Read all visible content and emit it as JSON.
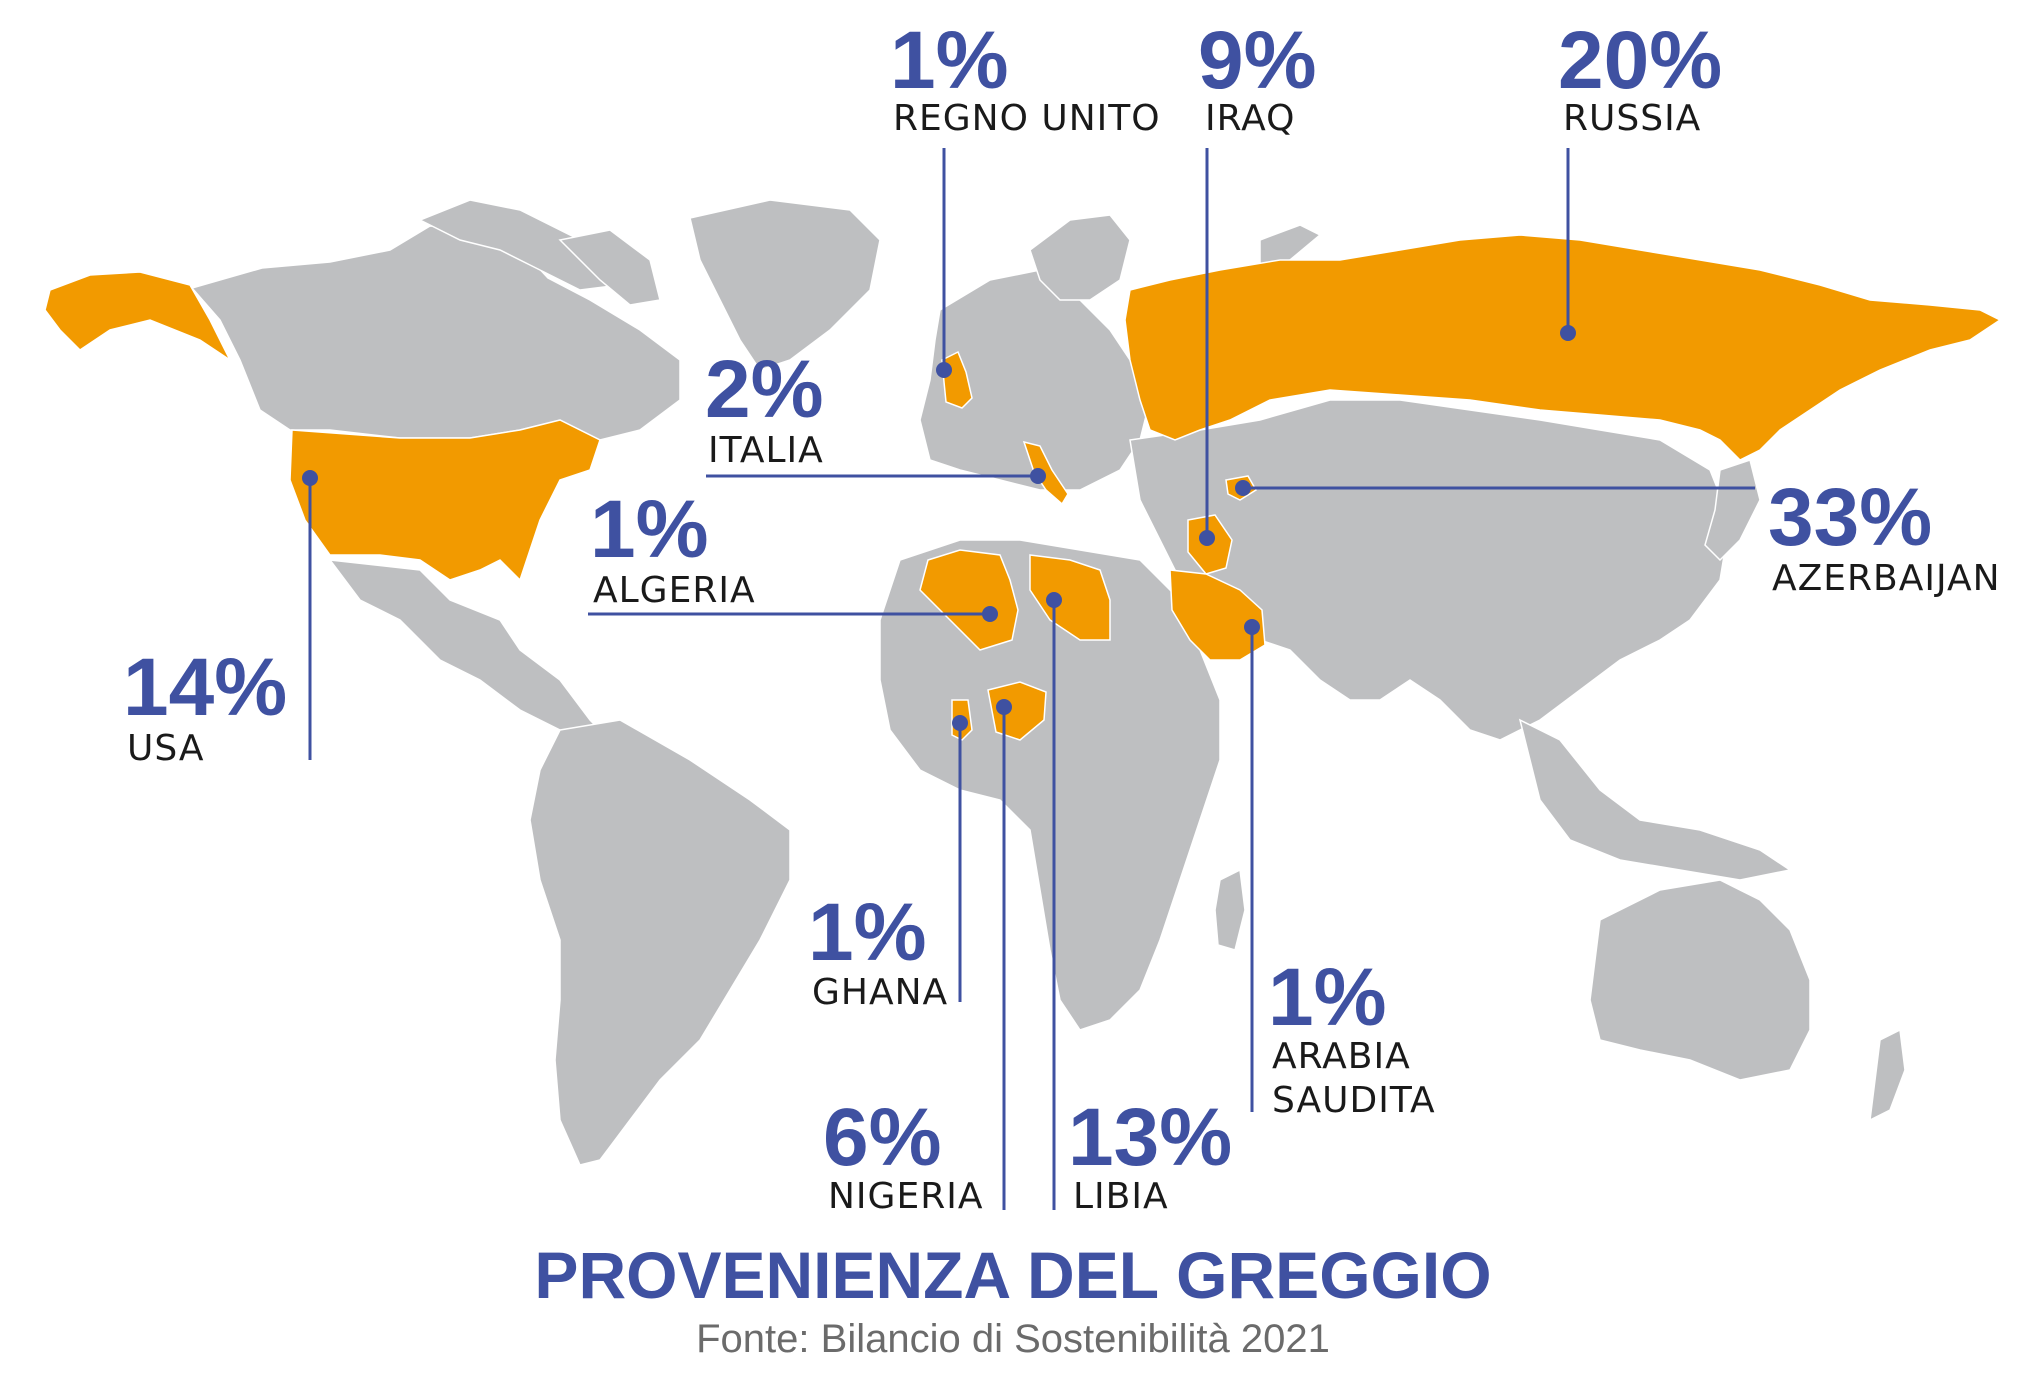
{
  "map": {
    "highlight_color": "#f29a00",
    "land_color": "#bebfc1",
    "accent_color": "#3f51a1"
  },
  "countries": [
    {
      "id": "usa",
      "percent": "14%",
      "name": "USA",
      "share": 14
    },
    {
      "id": "uk",
      "percent": "1%",
      "name": "REGNO UNITO",
      "share": 1
    },
    {
      "id": "italy",
      "percent": "2%",
      "name": "ITALIA",
      "share": 2
    },
    {
      "id": "algeria",
      "percent": "1%",
      "name": "ALGERIA",
      "share": 1
    },
    {
      "id": "iraq",
      "percent": "9%",
      "name": "IRAQ",
      "share": 9
    },
    {
      "id": "russia",
      "percent": "20%",
      "name": "RUSSIA",
      "share": 20
    },
    {
      "id": "azerbaijan",
      "percent": "33%",
      "name": "AZERBAIJAN",
      "share": 33
    },
    {
      "id": "ghana",
      "percent": "1%",
      "name": "GHANA",
      "share": 1
    },
    {
      "id": "nigeria",
      "percent": "6%",
      "name": "NIGERIA",
      "share": 6
    },
    {
      "id": "libya",
      "percent": "13%",
      "name": "LIBIA",
      "share": 13
    },
    {
      "id": "saudi",
      "percent": "1%",
      "name_line1": "ARABIA",
      "name_line2": "SAUDITA",
      "share": 1
    }
  ],
  "title": "PROVENIENZA DEL GREGGIO",
  "source": "Fonte: Bilancio di Sostenibilità 2021"
}
